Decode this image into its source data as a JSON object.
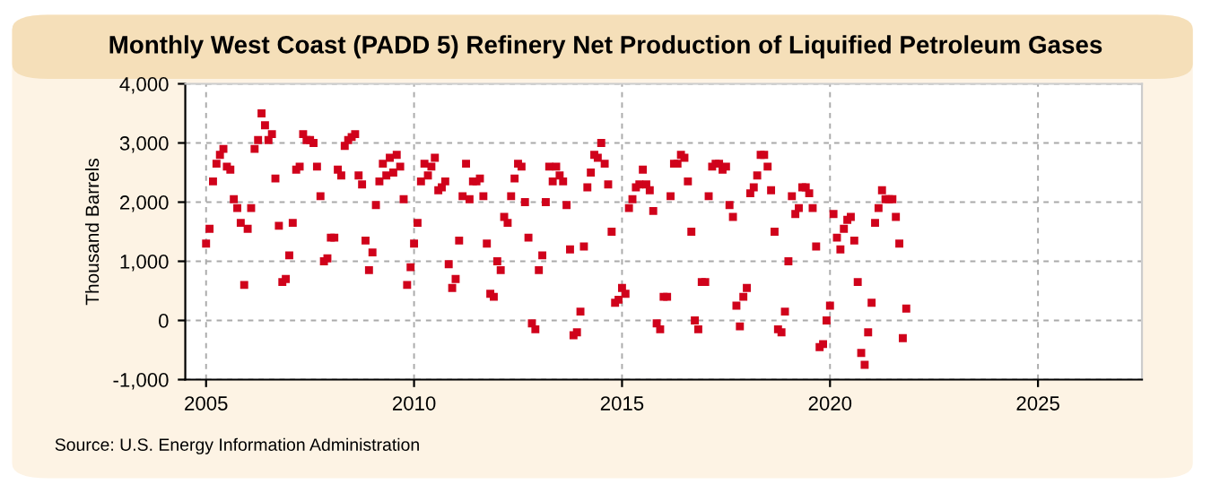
{
  "chart_data": {
    "type": "scatter",
    "title": "Monthly West Coast (PADD 5) Refinery Net Production of Liquified Petroleum Gases",
    "ylabel": "Thousand Barrels",
    "annotations": [
      "Source: U.S. Energy Information Administration"
    ],
    "x": [
      "2005-01",
      "2005-02",
      "2005-03",
      "2005-04",
      "2005-05",
      "2005-06",
      "2005-07",
      "2005-08",
      "2005-09",
      "2005-10",
      "2005-11",
      "2005-12",
      "2006-01",
      "2006-02",
      "2006-03",
      "2006-04",
      "2006-05",
      "2006-06",
      "2006-07",
      "2006-08",
      "2006-09",
      "2006-10",
      "2006-11",
      "2006-12",
      "2007-01",
      "2007-02",
      "2007-03",
      "2007-04",
      "2007-05",
      "2007-06",
      "2007-07",
      "2007-08",
      "2007-09",
      "2007-10",
      "2007-11",
      "2007-12",
      "2008-01",
      "2008-02",
      "2008-03",
      "2008-04",
      "2008-05",
      "2008-06",
      "2008-07",
      "2008-08",
      "2008-09",
      "2008-10",
      "2008-11",
      "2008-12",
      "2009-01",
      "2009-02",
      "2009-03",
      "2009-04",
      "2009-05",
      "2009-06",
      "2009-07",
      "2009-08",
      "2009-09",
      "2009-10",
      "2009-11",
      "2009-12",
      "2010-01",
      "2010-02",
      "2010-03",
      "2010-04",
      "2010-05",
      "2010-06",
      "2010-07",
      "2010-08",
      "2010-09",
      "2010-10",
      "2010-11",
      "2010-12",
      "2011-01",
      "2011-02",
      "2011-03",
      "2011-04",
      "2011-05",
      "2011-06",
      "2011-07",
      "2011-08",
      "2011-09",
      "2011-10",
      "2011-11",
      "2011-12",
      "2012-01",
      "2012-02",
      "2012-03",
      "2012-04",
      "2012-05",
      "2012-06",
      "2012-07",
      "2012-08",
      "2012-09",
      "2012-10",
      "2012-11",
      "2012-12",
      "2013-01",
      "2013-02",
      "2013-03",
      "2013-04",
      "2013-05",
      "2013-06",
      "2013-07",
      "2013-08",
      "2013-09",
      "2013-10",
      "2013-11",
      "2013-12",
      "2014-01",
      "2014-02",
      "2014-03",
      "2014-04",
      "2014-05",
      "2014-06",
      "2014-07",
      "2014-08",
      "2014-09",
      "2014-10",
      "2014-11",
      "2014-12",
      "2015-01",
      "2015-02",
      "2015-03",
      "2015-04",
      "2015-05",
      "2015-06",
      "2015-07",
      "2015-08",
      "2015-09",
      "2015-10",
      "2015-11",
      "2015-12",
      "2016-01",
      "2016-02",
      "2016-03",
      "2016-04",
      "2016-05",
      "2016-06",
      "2016-07",
      "2016-08",
      "2016-09",
      "2016-10",
      "2016-11",
      "2016-12",
      "2017-01",
      "2017-02",
      "2017-03",
      "2017-04",
      "2017-05",
      "2017-06",
      "2017-07",
      "2017-08",
      "2017-09",
      "2017-10",
      "2017-11",
      "2017-12",
      "2018-01",
      "2018-02",
      "2018-03",
      "2018-04",
      "2018-05",
      "2018-06",
      "2018-07",
      "2018-08",
      "2018-09",
      "2018-10",
      "2018-11",
      "2018-12",
      "2019-01",
      "2019-02",
      "2019-03",
      "2019-04",
      "2019-05",
      "2019-06",
      "2019-07",
      "2019-08",
      "2019-09",
      "2019-10",
      "2019-11",
      "2019-12",
      "2020-01",
      "2020-02",
      "2020-03",
      "2020-04",
      "2020-05",
      "2020-06",
      "2020-07",
      "2020-08",
      "2020-09",
      "2020-10",
      "2020-11",
      "2020-12",
      "2021-01",
      "2021-02",
      "2021-03",
      "2021-04",
      "2021-05",
      "2021-06",
      "2021-07",
      "2021-08",
      "2021-09",
      "2021-10",
      "2021-11"
    ],
    "values": [
      1300,
      1550,
      2350,
      2650,
      2800,
      2900,
      2600,
      2550,
      2050,
      1900,
      1650,
      600,
      1550,
      1900,
      2900,
      3050,
      3500,
      3300,
      3050,
      3150,
      2400,
      1600,
      650,
      700,
      1100,
      1650,
      2550,
      2600,
      3150,
      3050,
      3050,
      3000,
      2600,
      2100,
      1000,
      1050,
      1400,
      1400,
      2550,
      2450,
      2950,
      3050,
      3100,
      3150,
      2450,
      2300,
      1350,
      850,
      1150,
      1950,
      2350,
      2650,
      2450,
      2750,
      2500,
      2800,
      2600,
      2050,
      600,
      900,
      1300,
      1650,
      2350,
      2650,
      2450,
      2600,
      2750,
      2200,
      2250,
      2350,
      950,
      550,
      700,
      1350,
      2100,
      2650,
      2050,
      2350,
      2350,
      2400,
      2100,
      1300,
      450,
      400,
      1000,
      850,
      1750,
      1650,
      2100,
      2400,
      2650,
      2600,
      2000,
      1400,
      -50,
      -150,
      850,
      1100,
      2000,
      2600,
      2350,
      2600,
      2450,
      2350,
      1950,
      1200,
      -250,
      -200,
      150,
      1250,
      2250,
      2500,
      2800,
      2750,
      3000,
      2650,
      2300,
      1500,
      300,
      350,
      550,
      450,
      1900,
      2050,
      2250,
      2300,
      2550,
      2300,
      2200,
      1850,
      -50,
      -150,
      400,
      400,
      2100,
      2650,
      2650,
      2800,
      2750,
      2350,
      1500,
      0,
      -150,
      650,
      650,
      2100,
      2600,
      2650,
      2650,
      2550,
      2600,
      1950,
      1750,
      250,
      -100,
      400,
      550,
      2150,
      2250,
      2450,
      2800,
      2800,
      2600,
      2200,
      1500,
      -150,
      -200,
      150,
      1000,
      2100,
      1800,
      1900,
      2250,
      2250,
      2150,
      1900,
      1250,
      -450,
      -400,
      0,
      250,
      1800,
      1400,
      1200,
      1550,
      1700,
      1750,
      1350,
      650,
      -550,
      -750,
      -200,
      300,
      1650,
      1900,
      2200,
      2050,
      2050,
      2050,
      1750,
      1300,
      -300,
      200
    ],
    "color": "#d0021b",
    "marker": "square",
    "xlim": [
      "2004-07",
      "2027-07"
    ],
    "xticks": [
      "2005",
      "2010",
      "2015",
      "2020",
      "2025"
    ],
    "ylim": [
      -1000,
      4000
    ],
    "yticks": [
      {
        "value": -1000,
        "label": "-1,000"
      },
      {
        "value": 0,
        "label": "0"
      },
      {
        "value": 1000,
        "label": "1,000"
      },
      {
        "value": 2000,
        "label": "2,000"
      },
      {
        "value": 3000,
        "label": "3,000"
      },
      {
        "value": 4000,
        "label": "4,000"
      }
    ],
    "grid": true
  }
}
